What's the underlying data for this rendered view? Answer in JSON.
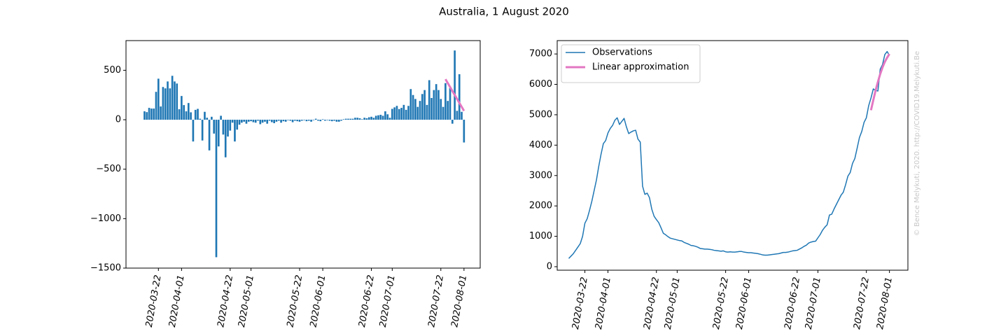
{
  "title": "Australia, 1 August 2020",
  "watermark": "© Bence Melykuti, 2020. http://COVID19.Melykuti.Be",
  "chart_data": [
    {
      "type": "bar",
      "xlim": [
        "2020-03-08",
        "2020-08-08"
      ],
      "xticks": [
        "2020-03-22",
        "2020-04-01",
        "2020-04-22",
        "2020-05-01",
        "2020-05-22",
        "2020-06-01",
        "2020-06-22",
        "2020-07-01",
        "2020-07-22",
        "2020-08-01"
      ],
      "ylim": [
        -1500,
        800
      ],
      "yticks": [
        {
          "value": -1500,
          "label": "−1500"
        },
        {
          "value": -1000,
          "label": "−1000"
        },
        {
          "value": -500,
          "label": "−500"
        },
        0,
        500
      ],
      "grid": false,
      "series": [
        {
          "type": "bar",
          "color": "#1f77b4",
          "x": [
            "2020-03-16",
            "2020-03-17",
            "2020-03-18",
            "2020-03-19",
            "2020-03-20",
            "2020-03-21",
            "2020-03-22",
            "2020-03-23",
            "2020-03-24",
            "2020-03-25",
            "2020-03-26",
            "2020-03-27",
            "2020-03-28",
            "2020-03-29",
            "2020-03-30",
            "2020-03-31",
            "2020-04-01",
            "2020-04-02",
            "2020-04-03",
            "2020-04-04",
            "2020-04-05",
            "2020-04-06",
            "2020-04-07",
            "2020-04-08",
            "2020-04-09",
            "2020-04-10",
            "2020-04-11",
            "2020-04-12",
            "2020-04-13",
            "2020-04-14",
            "2020-04-15",
            "2020-04-16",
            "2020-04-17",
            "2020-04-18",
            "2020-04-19",
            "2020-04-20",
            "2020-04-21",
            "2020-04-22",
            "2020-04-23",
            "2020-04-24",
            "2020-04-25",
            "2020-04-26",
            "2020-04-27",
            "2020-04-28",
            "2020-04-29",
            "2020-04-30",
            "2020-05-01",
            "2020-05-02",
            "2020-05-03",
            "2020-05-04",
            "2020-05-05",
            "2020-05-06",
            "2020-05-07",
            "2020-05-08",
            "2020-05-09",
            "2020-05-10",
            "2020-05-11",
            "2020-05-12",
            "2020-05-13",
            "2020-05-14",
            "2020-05-15",
            "2020-05-16",
            "2020-05-17",
            "2020-05-18",
            "2020-05-19",
            "2020-05-20",
            "2020-05-21",
            "2020-05-22",
            "2020-05-23",
            "2020-05-24",
            "2020-05-25",
            "2020-05-26",
            "2020-05-27",
            "2020-05-28",
            "2020-05-29",
            "2020-05-30",
            "2020-05-31",
            "2020-06-01",
            "2020-06-02",
            "2020-06-03",
            "2020-06-04",
            "2020-06-05",
            "2020-06-06",
            "2020-06-07",
            "2020-06-08",
            "2020-06-09",
            "2020-06-10",
            "2020-06-11",
            "2020-06-12",
            "2020-06-13",
            "2020-06-14",
            "2020-06-15",
            "2020-06-16",
            "2020-06-17",
            "2020-06-18",
            "2020-06-19",
            "2020-06-20",
            "2020-06-21",
            "2020-06-22",
            "2020-06-23",
            "2020-06-24",
            "2020-06-25",
            "2020-06-26",
            "2020-06-27",
            "2020-06-28",
            "2020-06-29",
            "2020-06-30",
            "2020-07-01",
            "2020-07-02",
            "2020-07-03",
            "2020-07-04",
            "2020-07-05",
            "2020-07-06",
            "2020-07-07",
            "2020-07-08",
            "2020-07-09",
            "2020-07-10",
            "2020-07-11",
            "2020-07-12",
            "2020-07-13",
            "2020-07-14",
            "2020-07-15",
            "2020-07-16",
            "2020-07-17",
            "2020-07-18",
            "2020-07-19",
            "2020-07-20",
            "2020-07-21",
            "2020-07-22",
            "2020-07-23",
            "2020-07-24",
            "2020-07-25",
            "2020-07-26",
            "2020-07-27",
            "2020-07-28",
            "2020-07-29",
            "2020-07-30",
            "2020-07-31",
            "2020-08-01"
          ],
          "values": [
            85,
            77,
            120,
            113,
            113,
            282,
            415,
            134,
            331,
            317,
            387,
            317,
            444,
            387,
            366,
            106,
            240,
            148,
            85,
            169,
            75,
            -220,
            100,
            110,
            10,
            -210,
            80,
            20,
            -310,
            30,
            -140,
            -1390,
            -270,
            40,
            -150,
            -380,
            -170,
            -110,
            -30,
            -220,
            -100,
            -50,
            -30,
            -20,
            -40,
            -20,
            -15,
            -25,
            -30,
            -10,
            -45,
            -30,
            -20,
            -40,
            -10,
            -25,
            -35,
            -20,
            -10,
            -30,
            -15,
            -20,
            -5,
            -10,
            -25,
            -10,
            -15,
            -20,
            -10,
            -5,
            -15,
            -10,
            -20,
            -5,
            10,
            -10,
            -15,
            5,
            -10,
            -5,
            -10,
            -15,
            -10,
            -20,
            -20,
            -10,
            5,
            10,
            10,
            10,
            10,
            20,
            20,
            15,
            5,
            20,
            15,
            25,
            30,
            20,
            40,
            45,
            50,
            40,
            85,
            55,
            20,
            110,
            125,
            140,
            108,
            120,
            150,
            100,
            140,
            310,
            250,
            210,
            130,
            190,
            260,
            300,
            150,
            400,
            220,
            300,
            360,
            300,
            210,
            130,
            370,
            190,
            320,
            -40,
            700,
            90,
            460,
            80,
            -230
          ]
        },
        {
          "type": "line",
          "color": "#e377c2",
          "width": 3,
          "x": [
            "2020-07-24",
            "2020-07-25",
            "2020-07-26",
            "2020-07-27",
            "2020-07-28",
            "2020-07-29",
            "2020-07-30",
            "2020-07-31",
            "2020-08-01"
          ],
          "values": [
            410,
            370,
            330,
            290,
            250,
            210,
            170,
            130,
            90
          ]
        }
      ]
    },
    {
      "type": "line",
      "xlim": [
        "2020-03-10",
        "2020-08-09"
      ],
      "xticks": [
        "2020-03-22",
        "2020-04-01",
        "2020-04-22",
        "2020-05-01",
        "2020-05-22",
        "2020-06-01",
        "2020-06-22",
        "2020-07-01",
        "2020-07-22",
        "2020-08-01"
      ],
      "ylim": [
        -115,
        7440
      ],
      "yticks": [
        0,
        1000,
        2000,
        3000,
        4000,
        5000,
        6000,
        7000
      ],
      "grid": false,
      "legend": "upper left",
      "series": [
        {
          "type": "line",
          "name": "Observations",
          "color": "#1f77b4",
          "width": 1.5,
          "x": [
            "2020-03-15",
            "2020-03-16",
            "2020-03-17",
            "2020-03-18",
            "2020-03-19",
            "2020-03-20",
            "2020-03-21",
            "2020-03-22",
            "2020-03-23",
            "2020-03-24",
            "2020-03-25",
            "2020-03-26",
            "2020-03-27",
            "2020-03-28",
            "2020-03-29",
            "2020-03-30",
            "2020-03-31",
            "2020-04-01",
            "2020-04-02",
            "2020-04-03",
            "2020-04-04",
            "2020-04-05",
            "2020-04-06",
            "2020-04-07",
            "2020-04-08",
            "2020-04-09",
            "2020-04-10",
            "2020-04-11",
            "2020-04-12",
            "2020-04-13",
            "2020-04-14",
            "2020-04-15",
            "2020-04-16",
            "2020-04-17",
            "2020-04-18",
            "2020-04-19",
            "2020-04-20",
            "2020-04-21",
            "2020-04-22",
            "2020-04-23",
            "2020-04-24",
            "2020-04-25",
            "2020-04-26",
            "2020-04-27",
            "2020-04-28",
            "2020-04-29",
            "2020-04-30",
            "2020-05-01",
            "2020-05-02",
            "2020-05-03",
            "2020-05-04",
            "2020-05-05",
            "2020-05-06",
            "2020-05-07",
            "2020-05-08",
            "2020-05-09",
            "2020-05-10",
            "2020-05-11",
            "2020-05-12",
            "2020-05-13",
            "2020-05-14",
            "2020-05-15",
            "2020-05-16",
            "2020-05-17",
            "2020-05-18",
            "2020-05-19",
            "2020-05-20",
            "2020-05-21",
            "2020-05-22",
            "2020-05-23",
            "2020-05-24",
            "2020-05-25",
            "2020-05-26",
            "2020-05-27",
            "2020-05-28",
            "2020-05-29",
            "2020-05-30",
            "2020-05-31",
            "2020-06-01",
            "2020-06-02",
            "2020-06-03",
            "2020-06-04",
            "2020-06-05",
            "2020-06-06",
            "2020-06-07",
            "2020-06-08",
            "2020-06-09",
            "2020-06-10",
            "2020-06-11",
            "2020-06-12",
            "2020-06-13",
            "2020-06-14",
            "2020-06-15",
            "2020-06-16",
            "2020-06-17",
            "2020-06-18",
            "2020-06-19",
            "2020-06-20",
            "2020-06-21",
            "2020-06-22",
            "2020-06-23",
            "2020-06-24",
            "2020-06-25",
            "2020-06-26",
            "2020-06-27",
            "2020-06-28",
            "2020-06-29",
            "2020-06-30",
            "2020-07-01",
            "2020-07-02",
            "2020-07-03",
            "2020-07-04",
            "2020-07-05",
            "2020-07-06",
            "2020-07-07",
            "2020-07-08",
            "2020-07-09",
            "2020-07-10",
            "2020-07-11",
            "2020-07-12",
            "2020-07-13",
            "2020-07-14",
            "2020-07-15",
            "2020-07-16",
            "2020-07-17",
            "2020-07-18",
            "2020-07-19",
            "2020-07-20",
            "2020-07-21",
            "2020-07-22",
            "2020-07-23",
            "2020-07-24",
            "2020-07-25",
            "2020-07-26",
            "2020-07-27",
            "2020-07-28",
            "2020-07-29",
            "2020-07-30",
            "2020-07-31",
            "2020-08-01"
          ],
          "values": [
            270,
            350,
            430,
            540,
            650,
            760,
            1000,
            1430,
            1580,
            1850,
            2150,
            2500,
            2850,
            3300,
            3700,
            4050,
            4150,
            4400,
            4550,
            4650,
            4820,
            4900,
            4680,
            4780,
            4880,
            4600,
            4380,
            4430,
            4470,
            4490,
            4200,
            4100,
            2650,
            2380,
            2420,
            2270,
            1890,
            1660,
            1550,
            1450,
            1280,
            1100,
            1050,
            990,
            940,
            920,
            900,
            880,
            860,
            850,
            800,
            770,
            740,
            700,
            690,
            670,
            640,
            600,
            590,
            580,
            580,
            570,
            560,
            540,
            530,
            520,
            510,
            520,
            490,
            480,
            490,
            480,
            480,
            490,
            500,
            500,
            480,
            470,
            460,
            460,
            450,
            440,
            430,
            410,
            390,
            380,
            380,
            390,
            400,
            410,
            420,
            430,
            450,
            470,
            470,
            480,
            500,
            520,
            530,
            540,
            580,
            620,
            670,
            710,
            780,
            810,
            830,
            840,
            950,
            1060,
            1200,
            1300,
            1380,
            1700,
            1730,
            1900,
            2050,
            2200,
            2350,
            2450,
            2700,
            2980,
            3100,
            3400,
            3560,
            3900,
            4250,
            4450,
            4750,
            4900,
            5300,
            5550,
            5850,
            5800,
            5780,
            6500,
            6650,
            6980,
            7080,
            6950
          ]
        },
        {
          "type": "line",
          "name": "Linear approximation",
          "color": "#e377c2",
          "width": 3,
          "x": [
            "2020-07-24",
            "2020-07-25",
            "2020-07-26",
            "2020-07-27",
            "2020-07-28",
            "2020-07-29",
            "2020-07-30",
            "2020-07-31",
            "2020-08-01"
          ],
          "values": [
            5150,
            5480,
            5800,
            6080,
            6340,
            6560,
            6740,
            6880,
            7000
          ]
        }
      ]
    }
  ]
}
